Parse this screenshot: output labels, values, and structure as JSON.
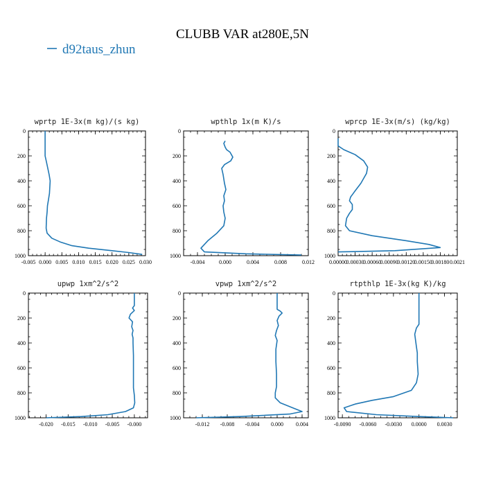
{
  "figure_title": "CLUBB VAR at280E,5N",
  "legend": {
    "label": "d92taus_zhun",
    "color": "#1f77b4"
  },
  "chart_data": [
    {
      "type": "line",
      "title": "wprtp  1E-3x(m kg)/(s kg)",
      "xlim": [
        -0.005,
        0.03
      ],
      "ylim": [
        1000,
        0
      ],
      "xticks": [
        "-0.005",
        "0.000",
        "0.005",
        "0.010",
        "0.015",
        "0.020",
        "0.025",
        "0.030"
      ],
      "xtick_values": [
        -0.005,
        0.0,
        0.005,
        0.01,
        0.015,
        0.02,
        0.025,
        0.03
      ],
      "yticks": [
        "0",
        "200",
        "400",
        "600",
        "800",
        "1000"
      ],
      "ytick_values": [
        0,
        200,
        400,
        600,
        800,
        1000
      ],
      "series": [
        {
          "color": "#1f77b4",
          "x": [
            0.0,
            0.0,
            0.0004,
            0.0008,
            0.0012,
            0.0015,
            0.0014,
            0.0013,
            0.001,
            0.0007,
            0.0006,
            0.0004,
            0.0003,
            0.0006,
            0.002,
            0.0045,
            0.008,
            0.013,
            0.02,
            0.025,
            0.029
          ],
          "y": [
            0,
            200,
            250,
            300,
            350,
            400,
            450,
            500,
            550,
            600,
            650,
            700,
            780,
            820,
            860,
            890,
            920,
            940,
            960,
            975,
            990
          ]
        }
      ]
    },
    {
      "type": "line",
      "title": "wpthlp  1x(m K)/s",
      "xlim": [
        -0.006,
        0.012
      ],
      "ylim": [
        1000,
        0
      ],
      "xticks": [
        "-0.004",
        "0.000",
        "0.004",
        "0.008",
        "0.012"
      ],
      "xtick_values": [
        -0.004,
        0.0,
        0.004,
        0.008,
        0.012
      ],
      "yticks": [
        "0",
        "200",
        "400",
        "600",
        "800",
        "1000"
      ],
      "ytick_values": [
        0,
        200,
        400,
        600,
        800,
        1000
      ],
      "series": [
        {
          "color": "#1f77b4",
          "x": [
            0.0,
            -0.0002,
            0.0,
            0.0002,
            0.0007,
            0.0011,
            0.0008,
            -0.0001,
            -0.0005,
            -0.0003,
            -0.0001,
            0.0001,
            -0.0002,
            -0.0001,
            -0.0003,
            -0.0002,
            0.0,
            -0.0002,
            -0.0012,
            -0.0025,
            -0.0035,
            -0.003,
            0.003,
            0.011
          ],
          "y": [
            80,
            100,
            130,
            150,
            170,
            210,
            240,
            270,
            300,
            350,
            420,
            470,
            520,
            560,
            600,
            650,
            700,
            760,
            820,
            880,
            940,
            970,
            985,
            995
          ]
        }
      ]
    },
    {
      "type": "line",
      "title": "wprcp  1E-3x(m/s) (kg/kg)",
      "xlim": [
        0.0,
        0.0021
      ],
      "ylim": [
        1000,
        0
      ],
      "xticks": [
        "0.00000",
        "0.00030",
        "0.00060",
        "0.00090",
        "0.00120",
        "0.00150",
        "0.00180",
        "0.0021"
      ],
      "xtick_values": [
        0.0,
        0.0003,
        0.0006,
        0.0009,
        0.0012,
        0.0015,
        0.0018,
        0.0021
      ],
      "yticks": [
        "0",
        "200",
        "400",
        "600",
        "800",
        "1000"
      ],
      "ytick_values": [
        0,
        200,
        400,
        600,
        800,
        1000
      ],
      "series": [
        {
          "color": "#1f77b4",
          "x": [
            0.0,
            0.0,
            0.0001,
            0.0003,
            0.00045,
            0.00052,
            0.0005,
            0.00045,
            0.0004,
            0.0003,
            0.00022,
            0.0002,
            0.00025,
            0.00025,
            0.0002,
            0.00015,
            0.00013,
            0.0002,
            0.0006,
            0.0012,
            0.0016,
            0.0018,
            0.001,
            0.0
          ],
          "y": [
            60,
            120,
            150,
            190,
            240,
            290,
            340,
            380,
            420,
            480,
            530,
            560,
            590,
            630,
            660,
            700,
            760,
            800,
            840,
            880,
            910,
            935,
            960,
            970
          ]
        }
      ]
    },
    {
      "type": "line",
      "title": "upwp  1xm^2/s^2",
      "xlim": [
        -0.024,
        0.003
      ],
      "ylim": [
        1000,
        0
      ],
      "xticks": [
        "-0.020",
        "-0.015",
        "-0.010",
        "-0.005",
        "-0.000"
      ],
      "xtick_values": [
        -0.02,
        -0.015,
        -0.01,
        -0.005,
        0.0
      ],
      "yticks": [
        "0",
        "200",
        "400",
        "600",
        "800",
        "1000"
      ],
      "ytick_values": [
        0,
        200,
        400,
        600,
        800,
        1000
      ],
      "series": [
        {
          "color": "#1f77b4",
          "x": [
            0.0,
            0.0,
            -0.0004,
            0.0,
            -0.0009,
            -0.0012,
            -0.0004,
            -0.0006,
            -0.0003,
            -0.0005,
            -0.0003,
            -0.0003,
            -0.0002,
            -0.0002,
            -0.0002,
            0.0,
            0.0001,
            -0.0002,
            -0.002,
            -0.006,
            -0.012,
            -0.02
          ],
          "y": [
            0,
            100,
            120,
            140,
            170,
            200,
            230,
            270,
            300,
            330,
            360,
            400,
            500,
            600,
            760,
            820,
            880,
            920,
            950,
            975,
            990,
            1000
          ]
        }
      ]
    },
    {
      "type": "line",
      "title": "vpwp  1xm^2/s^2",
      "xlim": [
        -0.015,
        0.005
      ],
      "ylim": [
        1000,
        0
      ],
      "xticks": [
        "-0.012",
        "-0.008",
        "-0.004",
        "0.000",
        "0.004"
      ],
      "xtick_values": [
        -0.012,
        -0.008,
        -0.004,
        0.0,
        0.004
      ],
      "yticks": [
        "0",
        "200",
        "400",
        "600",
        "800",
        "1000"
      ],
      "ytick_values": [
        0,
        200,
        400,
        600,
        800,
        1000
      ],
      "series": [
        {
          "color": "#1f77b4",
          "x": [
            0.0,
            0.0,
            0.0005,
            0.0008,
            0.0003,
            0.0,
            0.0002,
            -0.0001,
            -0.0003,
            0.0,
            -0.0002,
            -0.0002,
            -0.0001,
            -0.0001,
            -0.0003,
            -0.0003,
            0.0005,
            0.0025,
            0.004,
            0.002,
            -0.006,
            -0.013
          ],
          "y": [
            0,
            130,
            145,
            160,
            185,
            220,
            260,
            300,
            340,
            380,
            450,
            550,
            650,
            750,
            800,
            840,
            880,
            920,
            950,
            970,
            990,
            1000
          ]
        }
      ]
    },
    {
      "type": "line",
      "title": "rtpthlp  1E-3x(kg K)/kg",
      "xlim": [
        -0.0095,
        0.0045
      ],
      "ylim": [
        1000,
        0
      ],
      "xticks": [
        "-0.0090",
        "-0.0060",
        "-0.0030",
        "0.0000",
        "0.0030"
      ],
      "xtick_values": [
        -0.009,
        -0.006,
        -0.003,
        0.0,
        0.003
      ],
      "yticks": [
        "0",
        "200",
        "400",
        "600",
        "800",
        "1000"
      ],
      "ytick_values": [
        0,
        200,
        400,
        600,
        800,
        1000
      ],
      "series": [
        {
          "color": "#1f77b4",
          "x": [
            0.0,
            0.0,
            -0.0003,
            -0.0005,
            -0.0004,
            -0.0003,
            -0.0002,
            -0.0002,
            -0.0001,
            -0.0003,
            -0.0009,
            -0.003,
            -0.0055,
            -0.0075,
            -0.0088,
            -0.0085,
            -0.005,
            0.0,
            0.004
          ],
          "y": [
            0,
            250,
            280,
            330,
            380,
            430,
            480,
            550,
            650,
            720,
            780,
            830,
            860,
            890,
            920,
            950,
            975,
            990,
            1000
          ]
        }
      ]
    }
  ]
}
